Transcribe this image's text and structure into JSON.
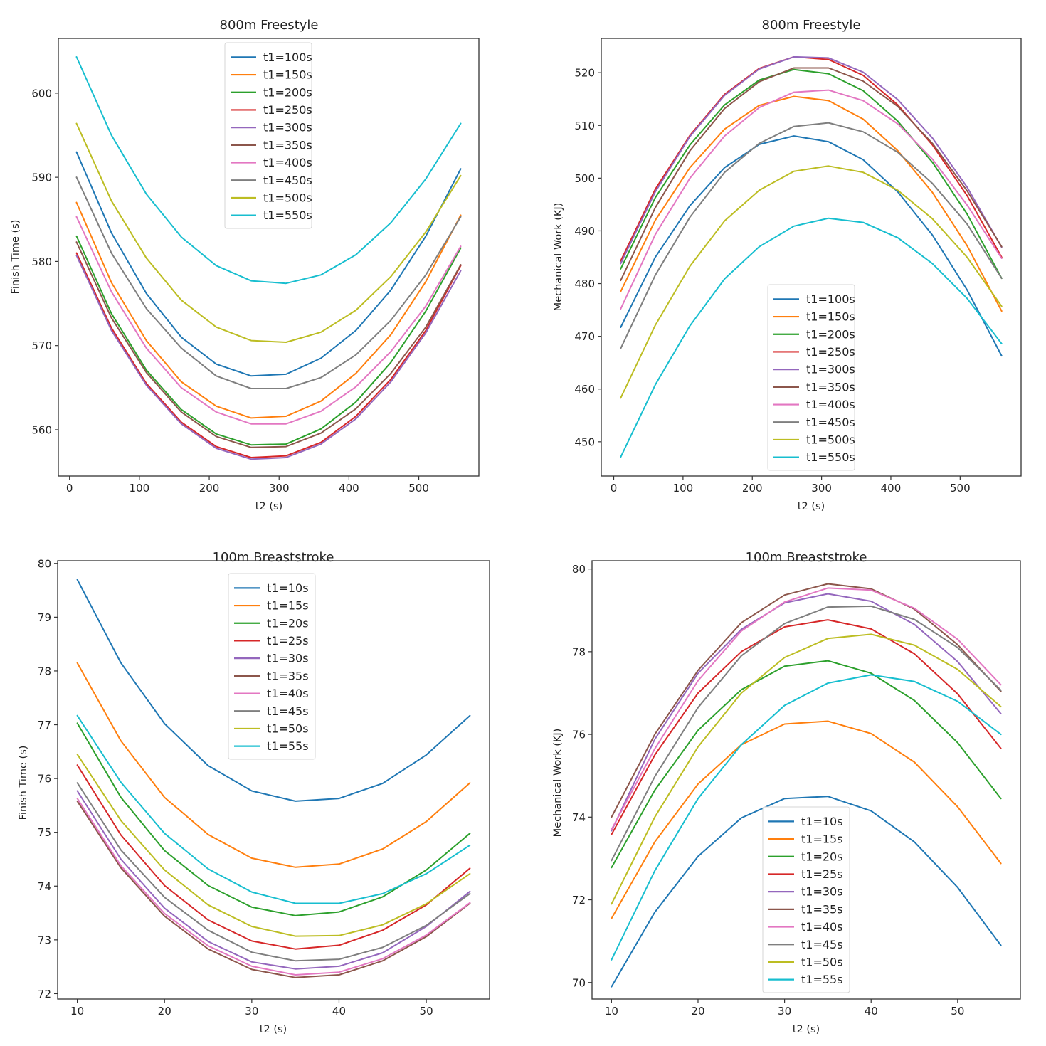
{
  "figure": {
    "layout": "2x2 grid"
  },
  "chart_data": [
    {
      "id": "freestyle-finish",
      "type": "line",
      "title": "800m Freestyle",
      "xlabel": "t2 (s)",
      "ylabel": "Finish Time (s)",
      "xlim": [
        -16,
        586
      ],
      "ylim": [
        554.5,
        606.5
      ],
      "xticks": [
        0,
        100,
        200,
        300,
        400,
        500
      ],
      "yticks": [
        560,
        570,
        580,
        590,
        600
      ],
      "grid": false,
      "legend_position": "upper-center",
      "x": [
        10,
        60,
        110,
        160,
        210,
        260,
        310,
        360,
        410,
        460,
        510,
        560
      ],
      "series": [
        {
          "name": "t1=100s",
          "color": "#1f77b4",
          "values": [
            593.0,
            583.4,
            576.2,
            571.0,
            567.8,
            566.4,
            566.6,
            568.5,
            571.8,
            576.6,
            583.0,
            591.0
          ]
        },
        {
          "name": "t1=150s",
          "color": "#ff7f0e",
          "values": [
            587.0,
            577.5,
            570.6,
            565.7,
            562.8,
            561.4,
            561.6,
            563.4,
            566.7,
            571.3,
            577.6,
            585.5
          ]
        },
        {
          "name": "t1=200s",
          "color": "#2ca02c",
          "values": [
            583.0,
            573.8,
            567.1,
            562.4,
            559.5,
            558.2,
            558.3,
            560.1,
            563.3,
            568.0,
            574.1,
            581.6
          ]
        },
        {
          "name": "t1=250s",
          "color": "#d62728",
          "values": [
            581.0,
            572.1,
            565.5,
            560.9,
            558.0,
            556.7,
            556.9,
            558.5,
            561.6,
            566.0,
            571.8,
            579.5
          ]
        },
        {
          "name": "t1=300s",
          "color": "#9467bd",
          "values": [
            580.7,
            571.8,
            565.3,
            560.7,
            557.8,
            556.5,
            556.7,
            558.3,
            561.3,
            565.7,
            571.5,
            578.9
          ]
        },
        {
          "name": "t1=350s",
          "color": "#8c564b",
          "values": [
            582.3,
            573.3,
            566.8,
            562.1,
            559.2,
            557.9,
            558.0,
            559.6,
            562.5,
            566.7,
            572.2,
            579.6
          ]
        },
        {
          "name": "t1=400s",
          "color": "#e377c2",
          "values": [
            585.3,
            576.4,
            569.7,
            565.0,
            562.1,
            560.7,
            560.7,
            562.2,
            565.1,
            569.3,
            574.7,
            581.8
          ]
        },
        {
          "name": "t1=450s",
          "color": "#7f7f7f",
          "values": [
            590.0,
            581.0,
            574.4,
            569.7,
            566.4,
            564.9,
            564.9,
            566.2,
            568.9,
            573.0,
            578.4,
            585.3
          ]
        },
        {
          "name": "t1=500s",
          "color": "#bcbd22",
          "values": [
            596.4,
            587.2,
            580.4,
            575.4,
            572.2,
            570.6,
            570.4,
            571.6,
            574.2,
            578.2,
            583.5,
            590.2
          ]
        },
        {
          "name": "t1=550s",
          "color": "#17becf",
          "values": [
            604.3,
            595.0,
            588.0,
            582.9,
            579.5,
            577.7,
            577.4,
            578.4,
            580.8,
            584.6,
            589.8,
            596.4
          ]
        }
      ]
    },
    {
      "id": "freestyle-work",
      "type": "line",
      "title": "800m Freestyle",
      "xlabel": "t2 (s)",
      "ylabel": "Mechanical Work (KJ)",
      "xlim": [
        -18,
        588
      ],
      "ylim": [
        443.5,
        526.5
      ],
      "xticks": [
        0,
        100,
        200,
        300,
        400,
        500
      ],
      "yticks": [
        450,
        460,
        470,
        480,
        490,
        500,
        510,
        520
      ],
      "grid": false,
      "legend_position": "lower-center",
      "x": [
        10,
        60,
        110,
        160,
        210,
        260,
        310,
        360,
        410,
        460,
        510,
        560
      ],
      "series": [
        {
          "name": "t1=100s",
          "color": "#1f77b4",
          "values": [
            471.7,
            485.0,
            494.8,
            502.0,
            506.4,
            508.0,
            506.9,
            503.5,
            497.4,
            489.2,
            478.8,
            466.3
          ]
        },
        {
          "name": "t1=150s",
          "color": "#ff7f0e",
          "values": [
            478.5,
            492.0,
            502.0,
            509.3,
            513.8,
            515.5,
            514.7,
            511.2,
            505.2,
            497.3,
            487.2,
            474.8
          ]
        },
        {
          "name": "t1=200s",
          "color": "#2ca02c",
          "values": [
            482.8,
            496.3,
            506.3,
            513.9,
            518.6,
            520.6,
            519.8,
            516.6,
            510.8,
            503.0,
            493.2,
            481.0
          ]
        },
        {
          "name": "t1=250s",
          "color": "#d62728",
          "values": [
            484.3,
            497.9,
            508.1,
            515.9,
            520.8,
            523.0,
            522.5,
            519.5,
            513.9,
            506.3,
            496.7,
            485.0
          ]
        },
        {
          "name": "t1=300s",
          "color": "#9467bd",
          "values": [
            483.8,
            497.4,
            507.9,
            515.7,
            520.7,
            523.0,
            522.8,
            520.1,
            514.9,
            507.6,
            498.3,
            486.9
          ]
        },
        {
          "name": "t1=350s",
          "color": "#8c564b",
          "values": [
            480.6,
            494.4,
            505.2,
            513.2,
            518.3,
            520.9,
            520.9,
            518.4,
            513.6,
            506.6,
            497.6,
            487.0
          ]
        },
        {
          "name": "t1=400s",
          "color": "#e377c2",
          "values": [
            475.2,
            489.3,
            500.0,
            508.0,
            513.4,
            516.3,
            516.7,
            514.7,
            510.3,
            503.6,
            494.9,
            484.8
          ]
        },
        {
          "name": "t1=450s",
          "color": "#7f7f7f",
          "values": [
            467.7,
            481.6,
            492.6,
            501.1,
            506.6,
            509.8,
            510.5,
            508.8,
            504.9,
            499.0,
            491.3,
            481.0
          ]
        },
        {
          "name": "t1=500s",
          "color": "#bcbd22",
          "values": [
            458.3,
            472.1,
            483.3,
            491.9,
            497.7,
            501.3,
            502.3,
            501.1,
            497.7,
            492.3,
            485.0,
            475.7
          ]
        },
        {
          "name": "t1=550s",
          "color": "#17becf",
          "values": [
            447.1,
            460.8,
            472.0,
            480.9,
            487.0,
            490.9,
            492.4,
            491.6,
            488.7,
            483.8,
            477.2,
            468.6
          ]
        }
      ]
    },
    {
      "id": "breaststroke-finish",
      "type": "line",
      "title": "100m Breaststroke",
      "xlabel": "t2 (s)",
      "ylabel": "Finish Time (s)",
      "xlim": [
        7.75,
        57.25
      ],
      "ylim": [
        71.9,
        80.05
      ],
      "xticks": [
        10,
        20,
        30,
        40,
        50
      ],
      "yticks": [
        72,
        73,
        74,
        75,
        76,
        77,
        78,
        79,
        80
      ],
      "grid": false,
      "legend_position": "upper-center",
      "x": [
        10,
        15,
        20,
        25,
        30,
        35,
        40,
        45,
        50,
        55
      ],
      "series": [
        {
          "name": "t1=10s",
          "color": "#1f77b4",
          "values": [
            79.7,
            78.15,
            77.02,
            76.24,
            75.77,
            75.58,
            75.63,
            75.91,
            76.44,
            77.17
          ]
        },
        {
          "name": "t1=15s",
          "color": "#ff7f0e",
          "values": [
            78.15,
            76.7,
            75.65,
            74.96,
            74.52,
            74.35,
            74.41,
            74.69,
            75.2,
            75.92
          ]
        },
        {
          "name": "t1=20s",
          "color": "#2ca02c",
          "values": [
            77.03,
            75.65,
            74.66,
            74.01,
            73.61,
            73.45,
            73.52,
            73.8,
            74.3,
            74.98
          ]
        },
        {
          "name": "t1=25s",
          "color": "#d62728",
          "values": [
            76.25,
            74.95,
            74.01,
            73.37,
            72.98,
            72.83,
            72.9,
            73.18,
            73.65,
            74.33
          ]
        },
        {
          "name": "t1=30s",
          "color": "#9467bd",
          "values": [
            75.77,
            74.5,
            73.59,
            72.97,
            72.59,
            72.46,
            72.51,
            72.76,
            73.25,
            73.9
          ]
        },
        {
          "name": "t1=35s",
          "color": "#8c564b",
          "values": [
            75.58,
            74.34,
            73.44,
            72.83,
            72.45,
            72.3,
            72.35,
            72.61,
            73.06,
            73.68
          ]
        },
        {
          "name": "t1=40s",
          "color": "#e377c2",
          "values": [
            75.63,
            74.38,
            73.49,
            72.89,
            72.51,
            72.35,
            72.4,
            72.65,
            73.09,
            73.69
          ]
        },
        {
          "name": "t1=45s",
          "color": "#7f7f7f",
          "values": [
            75.92,
            74.67,
            73.79,
            73.18,
            72.77,
            72.61,
            72.64,
            72.86,
            73.27,
            73.86
          ]
        },
        {
          "name": "t1=50s",
          "color": "#bcbd22",
          "values": [
            76.45,
            75.22,
            74.3,
            73.65,
            73.25,
            73.07,
            73.08,
            73.28,
            73.67,
            74.23
          ]
        },
        {
          "name": "t1=55s",
          "color": "#17becf",
          "values": [
            77.17,
            75.93,
            74.98,
            74.32,
            73.89,
            73.68,
            73.68,
            73.86,
            74.23,
            74.76
          ]
        }
      ]
    },
    {
      "id": "breaststroke-work",
      "type": "line",
      "title": "100m Breaststroke",
      "xlabel": "t2 (s)",
      "ylabel": "Mechanical Work (KJ)",
      "xlim": [
        7.75,
        57.25
      ],
      "ylim": [
        69.6,
        80.2
      ],
      "xticks": [
        10,
        20,
        30,
        40,
        50
      ],
      "yticks": [
        70,
        72,
        74,
        76,
        78,
        80
      ],
      "grid": false,
      "legend_position": "lower-center",
      "x": [
        10,
        15,
        20,
        25,
        30,
        35,
        40,
        45,
        50,
        55
      ],
      "series": [
        {
          "name": "t1=10s",
          "color": "#1f77b4",
          "values": [
            69.9,
            71.7,
            73.05,
            73.98,
            74.45,
            74.5,
            74.15,
            73.4,
            72.3,
            70.9
          ]
        },
        {
          "name": "t1=15s",
          "color": "#ff7f0e",
          "values": [
            71.55,
            73.4,
            74.8,
            75.75,
            76.25,
            76.32,
            76.02,
            75.33,
            74.25,
            72.88
          ]
        },
        {
          "name": "t1=20s",
          "color": "#2ca02c",
          "values": [
            72.78,
            74.65,
            76.1,
            77.08,
            77.65,
            77.78,
            77.48,
            76.82,
            75.8,
            74.45
          ]
        },
        {
          "name": "t1=25s",
          "color": "#d62728",
          "values": [
            73.58,
            75.5,
            77.0,
            78.0,
            78.6,
            78.77,
            78.55,
            77.95,
            76.98,
            75.66
          ]
        },
        {
          "name": "t1=30s",
          "color": "#9467bd",
          "values": [
            73.67,
            75.88,
            77.48,
            78.54,
            79.18,
            79.4,
            79.22,
            78.66,
            77.76,
            76.5
          ]
        },
        {
          "name": "t1=35s",
          "color": "#8c564b",
          "values": [
            74.0,
            76.0,
            77.55,
            78.7,
            79.37,
            79.64,
            79.52,
            79.03,
            78.17,
            77.04
          ]
        },
        {
          "name": "t1=40s",
          "color": "#e377c2",
          "values": [
            73.7,
            75.65,
            77.3,
            78.5,
            79.2,
            79.54,
            79.49,
            79.05,
            78.3,
            77.2
          ]
        },
        {
          "name": "t1=45s",
          "color": "#7f7f7f",
          "values": [
            72.95,
            74.98,
            76.65,
            77.9,
            78.68,
            79.08,
            79.1,
            78.78,
            78.1,
            77.07
          ]
        },
        {
          "name": "t1=50s",
          "color": "#bcbd22",
          "values": [
            71.9,
            74.0,
            75.7,
            77.0,
            77.86,
            78.32,
            78.42,
            78.16,
            77.57,
            76.67
          ]
        },
        {
          "name": "t1=55s",
          "color": "#17becf",
          "values": [
            70.55,
            72.7,
            74.45,
            75.75,
            76.7,
            77.24,
            77.44,
            77.28,
            76.8,
            76.0
          ]
        }
      ]
    }
  ]
}
